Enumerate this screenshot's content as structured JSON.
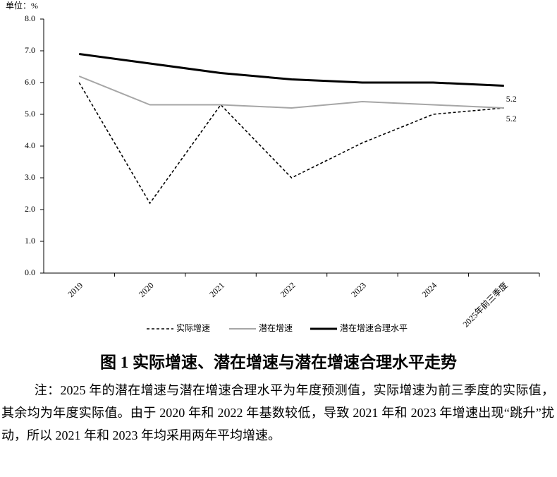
{
  "chart_data": {
    "type": "line",
    "y_label": "单位：%",
    "categories": [
      "2019",
      "2020",
      "2021",
      "2022",
      "2023",
      "2024",
      "2025年前三季度"
    ],
    "series": [
      {
        "name": "实际增速",
        "color": "#000000",
        "values": [
          6.0,
          2.2,
          5.3,
          3.0,
          4.1,
          5.0,
          5.2
        ]
      },
      {
        "name": "潜在增速",
        "color": "#a6a6a6",
        "values": [
          6.2,
          5.3,
          5.3,
          5.2,
          5.4,
          5.3,
          5.2
        ]
      },
      {
        "name": "潜在增速合理水平",
        "color": "#000000",
        "values": [
          6.9,
          6.6,
          6.3,
          6.1,
          6.0,
          6.0,
          5.9
        ]
      }
    ],
    "ylim": [
      0,
      8
    ],
    "yticks": [
      {
        "value": 0,
        "label": "0.0"
      },
      {
        "value": 1,
        "label": "1.0"
      },
      {
        "value": 2,
        "label": "2.0"
      },
      {
        "value": 3,
        "label": "3.0"
      },
      {
        "value": 4,
        "label": "4.0"
      },
      {
        "value": 5,
        "label": "5.0"
      },
      {
        "value": 6,
        "label": "6.0"
      },
      {
        "value": 7,
        "label": "7.0"
      },
      {
        "value": 8,
        "label": "8.0"
      }
    ],
    "grid": false,
    "legend": "bottom"
  },
  "caption": "图 1  实际增速、潜在增速与潜在增速合理水平走势",
  "note": "注：2025 年的潜在增速与潜在增速合理水平为年度预测值，实际增速为前三季度的实际值，其余均为年度实际值。由于 2020 年和 2022 年基数较低，导致 2021 年和 2023 年增速出现“跳升”扰动，所以 2021 年和 2023 年均采用两年平均增速。"
}
